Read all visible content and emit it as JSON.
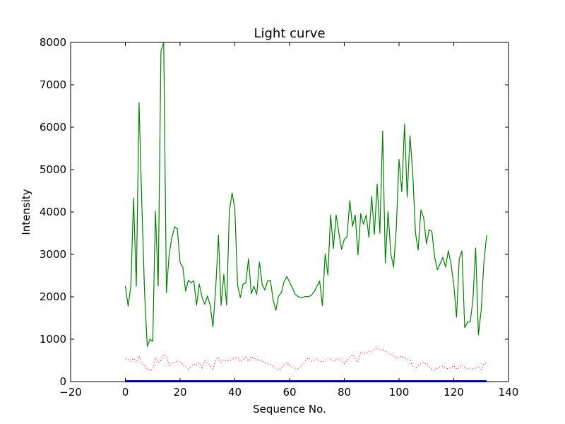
{
  "chart_data": {
    "type": "line",
    "title": "Light curve",
    "xlabel": "Sequence No.",
    "ylabel": "Intensity",
    "xlim": [
      -20,
      140
    ],
    "ylim": [
      0,
      8000
    ],
    "xticks": [
      "−20",
      "0",
      "20",
      "40",
      "60",
      "80",
      "100",
      "120",
      "140"
    ],
    "yticks": [
      "0",
      "1000",
      "2000",
      "3000",
      "4000",
      "5000",
      "6000",
      "7000",
      "8000"
    ],
    "grid": false,
    "legend": "none",
    "series": [
      {
        "style": "solid",
        "color": "#008000",
        "x": [
          0,
          1,
          2,
          3,
          4,
          5,
          6,
          7,
          8,
          9,
          10,
          11,
          12,
          13,
          14,
          15,
          16,
          17,
          18,
          19,
          20,
          21,
          22,
          23,
          24,
          25,
          26,
          27,
          28,
          29,
          30,
          31,
          32,
          33,
          34,
          35,
          36,
          37,
          38,
          39,
          40,
          41,
          42,
          43,
          44,
          45,
          46,
          47,
          48,
          49,
          50,
          51,
          52,
          53,
          54,
          55,
          56,
          57,
          58,
          59,
          60,
          61,
          62,
          63,
          64,
          65,
          66,
          67,
          68,
          69,
          70,
          71,
          72,
          73,
          74,
          75,
          76,
          77,
          78,
          79,
          80,
          81,
          82,
          83,
          84,
          85,
          86,
          87,
          88,
          89,
          90,
          91,
          92,
          93,
          94,
          95,
          96,
          97,
          98,
          99,
          100,
          101,
          102,
          103,
          104,
          105,
          106,
          107,
          108,
          109,
          110,
          111,
          112,
          113,
          114,
          115,
          116,
          117,
          118,
          119,
          120,
          121,
          122,
          123,
          124,
          125,
          126,
          127,
          128,
          129,
          130,
          131,
          132
        ],
        "y": [
          2250,
          1780,
          2250,
          4330,
          2250,
          6580,
          4200,
          2150,
          830,
          1000,
          950,
          4020,
          2250,
          7800,
          8000,
          2100,
          3000,
          3400,
          3650,
          3600,
          2800,
          2700,
          2130,
          2390,
          2330,
          2380,
          1800,
          2300,
          2000,
          1820,
          2020,
          1800,
          1290,
          2200,
          3450,
          1800,
          2530,
          1800,
          4030,
          4450,
          4080,
          2280,
          1980,
          2300,
          2320,
          2900,
          2070,
          2250,
          2050,
          2820,
          2280,
          2160,
          2380,
          2390,
          1920,
          1680,
          2020,
          2100,
          2360,
          2480,
          2340,
          2220,
          2060,
          2010,
          1980,
          1990,
          2010,
          2000,
          2040,
          2120,
          2250,
          2370,
          1790,
          3010,
          2510,
          3930,
          3140,
          3930,
          3510,
          3120,
          3350,
          3420,
          4270,
          3660,
          3930,
          2990,
          3960,
          3710,
          3930,
          3400,
          4370,
          3470,
          4660,
          3500,
          5910,
          2800,
          4010,
          3010,
          2700,
          3620,
          5240,
          4480,
          6070,
          4350,
          5800,
          4930,
          3500,
          3100,
          4050,
          3860,
          3250,
          3580,
          3540,
          2940,
          2640,
          2780,
          2930,
          2700,
          3090,
          2770,
          2290,
          1520,
          2900,
          3080,
          1270,
          1400,
          1410,
          1920,
          3150,
          1100,
          1680,
          2800,
          3450
        ]
      },
      {
        "style": "dotted",
        "color": "#ff0000",
        "x": [
          0,
          1,
          2,
          3,
          4,
          5,
          6,
          7,
          8,
          9,
          10,
          11,
          12,
          13,
          14,
          15,
          16,
          17,
          18,
          19,
          20,
          21,
          22,
          23,
          24,
          25,
          26,
          27,
          28,
          29,
          30,
          31,
          32,
          33,
          34,
          35,
          36,
          37,
          38,
          39,
          40,
          41,
          42,
          43,
          44,
          45,
          46,
          47,
          48,
          49,
          50,
          51,
          52,
          53,
          54,
          55,
          56,
          57,
          58,
          59,
          60,
          61,
          62,
          63,
          64,
          65,
          66,
          67,
          68,
          69,
          70,
          71,
          72,
          73,
          74,
          75,
          76,
          77,
          78,
          79,
          80,
          81,
          82,
          83,
          84,
          85,
          86,
          87,
          88,
          89,
          90,
          91,
          92,
          93,
          94,
          95,
          96,
          97,
          98,
          99,
          100,
          101,
          102,
          103,
          104,
          105,
          106,
          107,
          108,
          109,
          110,
          111,
          112,
          113,
          114,
          115,
          116,
          117,
          118,
          119,
          120,
          121,
          122,
          123,
          124,
          125,
          126,
          127,
          128,
          129,
          130,
          131,
          132
        ],
        "y": [
          540,
          520,
          480,
          550,
          450,
          600,
          410,
          380,
          300,
          260,
          290,
          560,
          440,
          500,
          640,
          600,
          380,
          420,
          460,
          480,
          460,
          400,
          350,
          300,
          350,
          420,
          380,
          450,
          300,
          500,
          420,
          380,
          300,
          500,
          580,
          450,
          520,
          480,
          500,
          520,
          560,
          580,
          470,
          520,
          600,
          480,
          600,
          550,
          520,
          500,
          480,
          440,
          420,
          400,
          360,
          300,
          280,
          320,
          400,
          450,
          380,
          340,
          320,
          300,
          350,
          420,
          520,
          560,
          480,
          500,
          540,
          480,
          460,
          500,
          560,
          520,
          480,
          520,
          540,
          480,
          420,
          500,
          560,
          640,
          540,
          460,
          700,
          680,
          660,
          720,
          700,
          760,
          800,
          740,
          760,
          720,
          680,
          640,
          620,
          560,
          580,
          600,
          560,
          520,
          500,
          360,
          300,
          380,
          420,
          460,
          400,
          360,
          300,
          280,
          320,
          340,
          360,
          320,
          300,
          340,
          380,
          300,
          320,
          400,
          340,
          300,
          320,
          300,
          320,
          360,
          280,
          420,
          450
        ]
      },
      {
        "style": "solid",
        "color": "#0000ff",
        "x": [
          0,
          1,
          2,
          3,
          4,
          5,
          6,
          7,
          8,
          9,
          10,
          11,
          12,
          13,
          14,
          15,
          16,
          17,
          18,
          19,
          20,
          21,
          22,
          23,
          24,
          25,
          26,
          27,
          28,
          29,
          30,
          31,
          32,
          33,
          34,
          35,
          36,
          37,
          38,
          39,
          40,
          41,
          42,
          43,
          44,
          45,
          46,
          47,
          48,
          49,
          50,
          51,
          52,
          53,
          54,
          55,
          56,
          57,
          58,
          59,
          60,
          61,
          62,
          63,
          64,
          65,
          66,
          67,
          68,
          69,
          70,
          71,
          72,
          73,
          74,
          75,
          76,
          77,
          78,
          79,
          80,
          81,
          82,
          83,
          84,
          85,
          86,
          87,
          88,
          89,
          90,
          91,
          92,
          93,
          94,
          95,
          96,
          97,
          98,
          99,
          100,
          101,
          102,
          103,
          104,
          105,
          106,
          107,
          108,
          109,
          110,
          111,
          112,
          113,
          114,
          115,
          116,
          117,
          118,
          119,
          120,
          121,
          122,
          123,
          124,
          125,
          126,
          127,
          128,
          129,
          130,
          131,
          132
        ],
        "y": [
          8,
          8,
          8,
          8,
          8,
          8,
          8,
          8,
          8,
          8,
          8,
          8,
          8,
          8,
          8,
          8,
          8,
          8,
          8,
          8,
          8,
          8,
          8,
          8,
          8,
          8,
          8,
          8,
          8,
          8,
          8,
          8,
          8,
          8,
          8,
          8,
          8,
          8,
          8,
          8,
          8,
          8,
          8,
          8,
          8,
          8,
          8,
          8,
          8,
          8,
          8,
          8,
          8,
          8,
          8,
          8,
          8,
          8,
          8,
          8,
          8,
          8,
          8,
          8,
          8,
          8,
          8,
          8,
          8,
          8,
          8,
          8,
          8,
          8,
          8,
          8,
          8,
          8,
          8,
          8,
          8,
          8,
          8,
          8,
          8,
          8,
          8,
          8,
          8,
          8,
          8,
          8,
          8,
          8,
          8,
          8,
          8,
          8,
          8,
          8,
          8,
          8,
          8,
          8,
          8,
          8,
          8,
          8,
          8,
          8,
          8,
          8,
          8,
          8,
          8,
          8,
          8,
          8,
          8,
          8,
          8,
          8,
          8,
          8,
          8,
          8,
          8,
          8,
          8,
          8,
          8,
          8,
          8
        ]
      }
    ]
  }
}
